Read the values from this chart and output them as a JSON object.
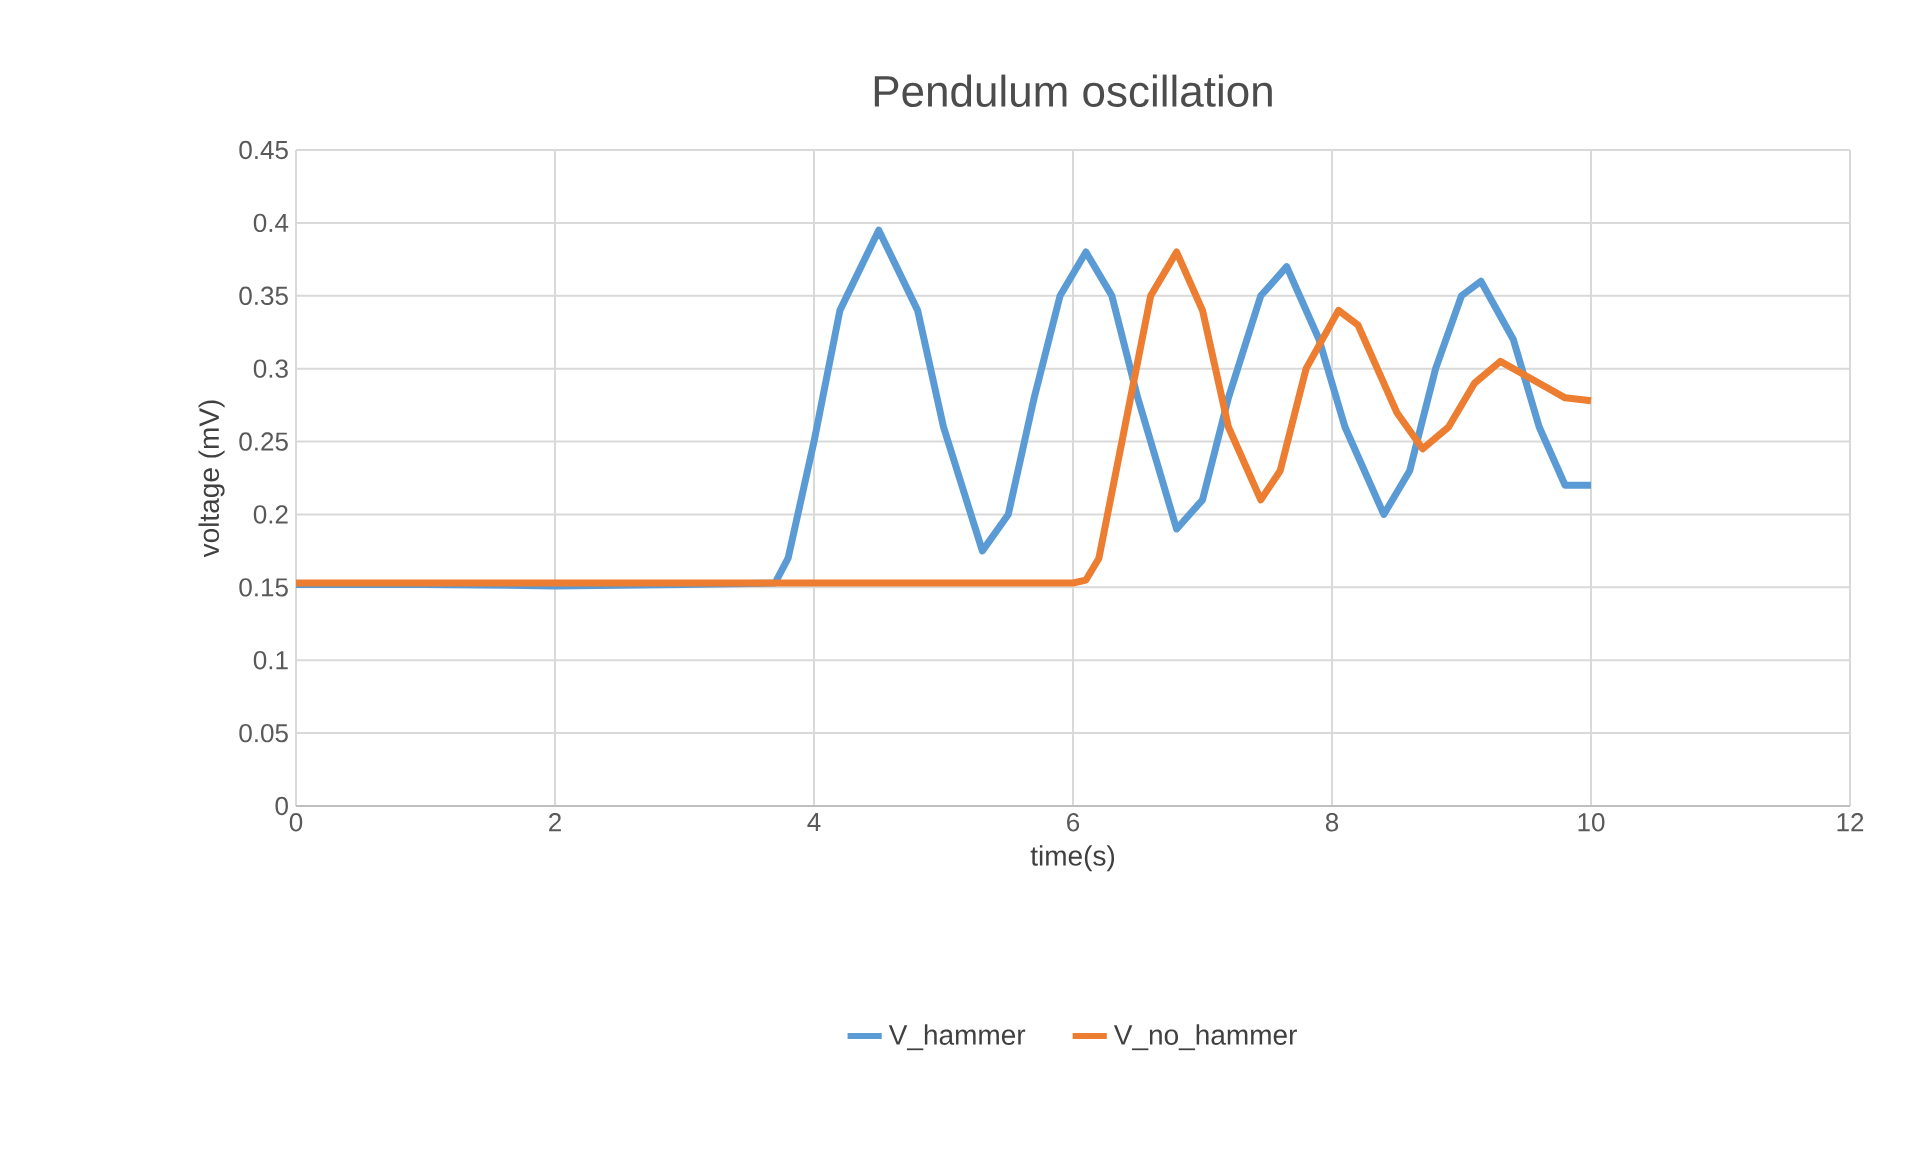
{
  "chart_data": {
    "type": "line",
    "title": "Pendulum oscillation",
    "xlabel": "time(s)",
    "ylabel": "voltage (mV)",
    "xlim": [
      0,
      12
    ],
    "xticks": [
      0,
      2,
      4,
      6,
      8,
      10,
      12
    ],
    "ylim": [
      0,
      0.45
    ],
    "yticks": [
      0,
      0.05,
      0.1,
      0.15,
      0.2,
      0.25,
      0.3,
      0.35,
      0.4,
      0.45
    ],
    "grid": true,
    "legend": "bottom",
    "series": [
      {
        "name": "V_hammer",
        "color": "#5b9bd5",
        "x": [
          0,
          1,
          2,
          3,
          3.7,
          3.8,
          4.0,
          4.2,
          4.5,
          4.8,
          5.0,
          5.3,
          5.5,
          5.7,
          5.9,
          6.1,
          6.3,
          6.5,
          6.8,
          7.0,
          7.2,
          7.45,
          7.65,
          7.9,
          8.1,
          8.4,
          8.6,
          8.8,
          9.0,
          9.15,
          9.4,
          9.6,
          9.8,
          10
        ],
        "values": [
          0.152,
          0.152,
          0.151,
          0.152,
          0.153,
          0.17,
          0.25,
          0.34,
          0.395,
          0.34,
          0.26,
          0.175,
          0.2,
          0.28,
          0.35,
          0.38,
          0.35,
          0.28,
          0.19,
          0.21,
          0.28,
          0.35,
          0.37,
          0.32,
          0.26,
          0.2,
          0.23,
          0.3,
          0.35,
          0.36,
          0.32,
          0.26,
          0.22,
          0.22
        ]
      },
      {
        "name": "V_no_hammer",
        "color": "#ed7d31",
        "x": [
          0,
          1,
          2,
          3,
          4,
          5,
          6,
          6.1,
          6.2,
          6.4,
          6.6,
          6.8,
          7.0,
          7.2,
          7.45,
          7.6,
          7.8,
          8.05,
          8.2,
          8.5,
          8.7,
          8.9,
          9.1,
          9.3,
          9.6,
          9.8,
          10
        ],
        "values": [
          0.153,
          0.153,
          0.153,
          0.153,
          0.153,
          0.153,
          0.153,
          0.155,
          0.17,
          0.26,
          0.35,
          0.38,
          0.34,
          0.26,
          0.21,
          0.23,
          0.3,
          0.34,
          0.33,
          0.27,
          0.245,
          0.26,
          0.29,
          0.305,
          0.29,
          0.28,
          0.278
        ]
      }
    ]
  }
}
